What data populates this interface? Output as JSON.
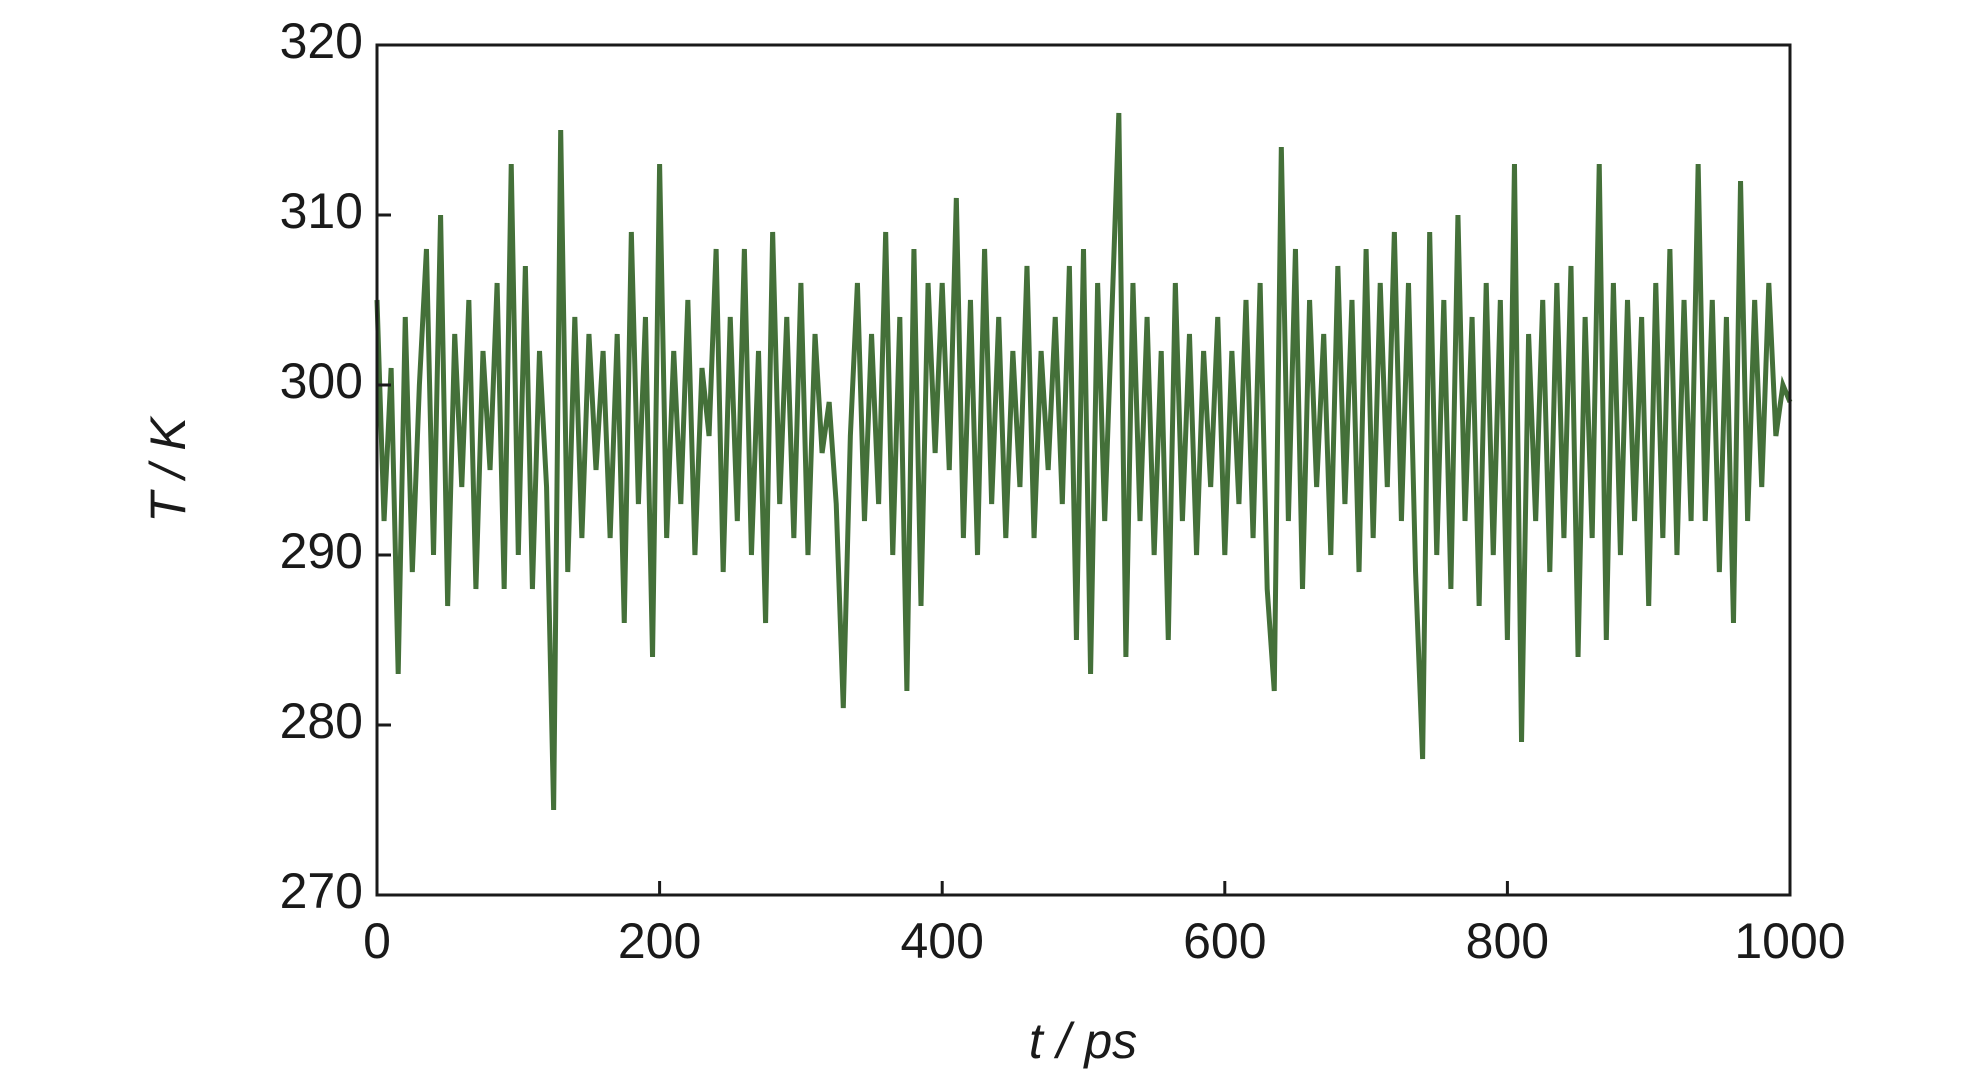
{
  "chart_data": {
    "type": "line",
    "xlabel": "t / ps",
    "ylabel": "T / K",
    "color": "#447039",
    "x": [
      0,
      5,
      10,
      15,
      20,
      25,
      30,
      35,
      40,
      45,
      50,
      55,
      60,
      65,
      70,
      75,
      80,
      85,
      90,
      95,
      100,
      105,
      110,
      115,
      120,
      125,
      130,
      135,
      140,
      145,
      150,
      155,
      160,
      165,
      170,
      175,
      180,
      185,
      190,
      195,
      200,
      205,
      210,
      215,
      220,
      225,
      230,
      235,
      240,
      245,
      250,
      255,
      260,
      265,
      270,
      275,
      280,
      285,
      290,
      295,
      300,
      305,
      310,
      315,
      320,
      325,
      330,
      335,
      340,
      345,
      350,
      355,
      360,
      365,
      370,
      375,
      380,
      385,
      390,
      395,
      400,
      405,
      410,
      415,
      420,
      425,
      430,
      435,
      440,
      445,
      450,
      455,
      460,
      465,
      470,
      475,
      480,
      485,
      490,
      495,
      500,
      505,
      510,
      515,
      520,
      525,
      530,
      535,
      540,
      545,
      550,
      555,
      560,
      565,
      570,
      575,
      580,
      585,
      590,
      595,
      600,
      605,
      610,
      615,
      620,
      625,
      630,
      635,
      640,
      645,
      650,
      655,
      660,
      665,
      670,
      675,
      680,
      685,
      690,
      695,
      700,
      705,
      710,
      715,
      720,
      725,
      730,
      735,
      740,
      745,
      750,
      755,
      760,
      765,
      770,
      775,
      780,
      785,
      790,
      795,
      800,
      805,
      810,
      815,
      820,
      825,
      830,
      835,
      840,
      845,
      850,
      855,
      860,
      865,
      870,
      875,
      880,
      885,
      890,
      895,
      900,
      905,
      910,
      915,
      920,
      925,
      930,
      935,
      940,
      945,
      950,
      955,
      960,
      965,
      970,
      975,
      980,
      985,
      990,
      995,
      1000
    ],
    "values": [
      305,
      292,
      301,
      283,
      304,
      289,
      300,
      308,
      290,
      310,
      287,
      303,
      294,
      305,
      288,
      302,
      295,
      306,
      288,
      313,
      290,
      307,
      288,
      302,
      294,
      275,
      315,
      289,
      304,
      291,
      303,
      295,
      302,
      291,
      303,
      286,
      309,
      293,
      304,
      284,
      313,
      291,
      302,
      293,
      305,
      290,
      301,
      297,
      308,
      289,
      304,
      292,
      308,
      290,
      302,
      286,
      309,
      293,
      304,
      291,
      306,
      290,
      303,
      296,
      299,
      293,
      281,
      297,
      306,
      292,
      303,
      293,
      309,
      290,
      304,
      282,
      308,
      287,
      306,
      296,
      306,
      295,
      311,
      291,
      305,
      290,
      308,
      293,
      304,
      291,
      302,
      294,
      307,
      291,
      302,
      295,
      304,
      293,
      307,
      285,
      308,
      283,
      306,
      292,
      304,
      316,
      284,
      306,
      292,
      304,
      290,
      302,
      285,
      306,
      292,
      303,
      290,
      302,
      294,
      304,
      290,
      302,
      293,
      305,
      291,
      306,
      288,
      282,
      314,
      292,
      308,
      288,
      305,
      294,
      303,
      290,
      307,
      293,
      305,
      289,
      308,
      291,
      306,
      294,
      309,
      292,
      306,
      289,
      278,
      309,
      290,
      305,
      288,
      310,
      292,
      304,
      287,
      306,
      290,
      305,
      285,
      313,
      279,
      303,
      292,
      305,
      289,
      306,
      291,
      307,
      284,
      304,
      291,
      313,
      285,
      306,
      290,
      305,
      292,
      304,
      287,
      306,
      291,
      308,
      290,
      305,
      292,
      313,
      292,
      305,
      289,
      304,
      286,
      312,
      292,
      305,
      294,
      306,
      297,
      300,
      299
    ],
    "xlim": [
      0,
      1000
    ],
    "xticks": [
      0,
      200,
      400,
      600,
      800,
      1000
    ],
    "ylim": [
      270,
      320
    ],
    "yticks": [
      270,
      280,
      290,
      300,
      310,
      320
    ],
    "grid": false
  }
}
